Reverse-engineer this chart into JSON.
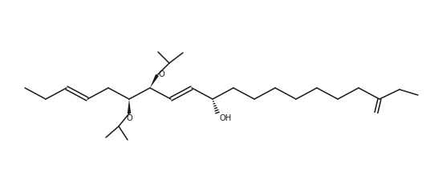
{
  "bg_color": "#ffffff",
  "line_color": "#1a1a1a",
  "text_color_dark": "#1a1a1a",
  "text_color_blue": "#000080",
  "line_width": 1.1,
  "font_size": 7.2,
  "figsize": [
    5.46,
    2.19
  ],
  "dpi": 100,
  "O_label": "O",
  "OH_label": "OH"
}
